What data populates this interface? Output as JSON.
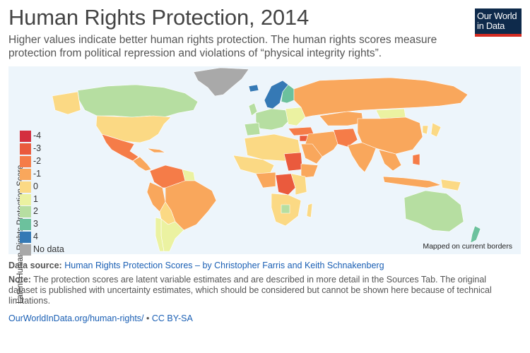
{
  "header": {
    "title": "Human Rights Protection, 2014",
    "subtitle": "Higher values indicate better human rights protection. The human rights scores measure protection from political repression and violations of “physical integrity rights”."
  },
  "logo": {
    "line1": "Our World",
    "line2": "in Data"
  },
  "legend": {
    "title": "Latent Human Rights Protection Score",
    "items": [
      {
        "label": "-4",
        "color": "#d42f3f"
      },
      {
        "label": "-3",
        "color": "#ea5a3d"
      },
      {
        "label": "-2",
        "color": "#f57c48"
      },
      {
        "label": "-1",
        "color": "#f9a75c"
      },
      {
        "label": "0",
        "color": "#fbd984"
      },
      {
        "label": "1",
        "color": "#ebf2a1"
      },
      {
        "label": "2",
        "color": "#b6dea1"
      },
      {
        "label": "3",
        "color": "#6cc19d"
      },
      {
        "label": "4",
        "color": "#3579b5"
      },
      {
        "label": "No data",
        "color": "#a9a9a9"
      }
    ]
  },
  "map": {
    "borders_note": "Mapped on current borders",
    "ocean_color": "#edf5fb"
  },
  "source": {
    "label": "Data source:",
    "text": "Human Rights Protection Scores – by Christopher Farris and Keith Schnakenberg"
  },
  "note": {
    "label": "Note:",
    "text": "The protection scores are latent variable estimates and are described in more detail in the Sources Tab. The original dataset is published with uncertainty estimates, which should be considered but cannot be shown here because of technical limitations."
  },
  "footer": {
    "url": "OurWorldInData.org/human-rights/",
    "separator": "•",
    "license": "CC BY-SA"
  }
}
